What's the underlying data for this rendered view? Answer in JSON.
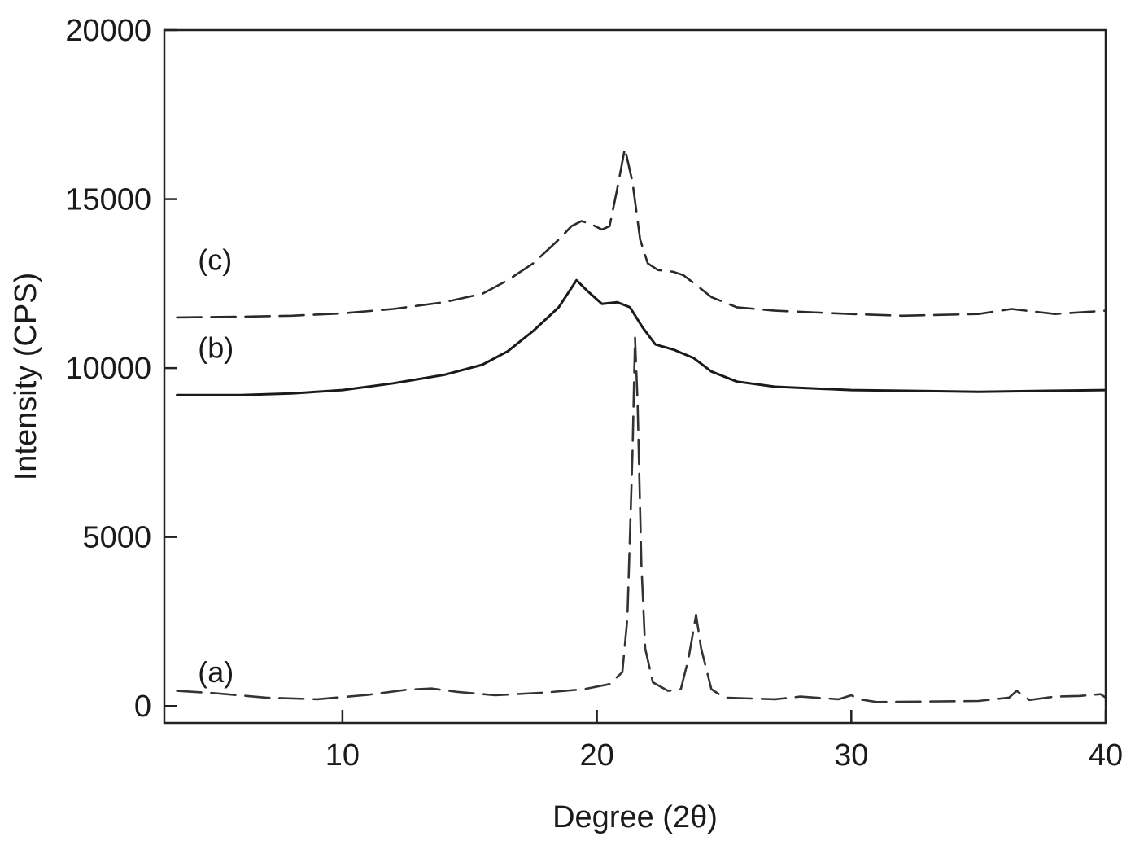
{
  "chart_data": {
    "type": "line",
    "title": "",
    "xlabel": "Degree (2θ)",
    "ylabel": "Intensity (CPS)",
    "xlim": [
      3,
      40
    ],
    "ylim": [
      -500,
      20000
    ],
    "xticks": [
      10,
      20,
      30,
      40
    ],
    "xtick_labels": [
      "10",
      "20",
      "30",
      "40"
    ],
    "yticks": [
      0,
      5000,
      10000,
      15000,
      20000
    ],
    "ytick_labels": [
      "0",
      "5000",
      "10000",
      "15000",
      "20000"
    ],
    "grid": false,
    "legend": "none",
    "series": [
      {
        "name": "(a)",
        "label_at": [
          4,
          700
        ],
        "style": "dashed",
        "color": "#333333",
        "points": [
          [
            3.5,
            450
          ],
          [
            5,
            380
          ],
          [
            7,
            250
          ],
          [
            9,
            200
          ],
          [
            11,
            330
          ],
          [
            12.5,
            480
          ],
          [
            13.5,
            520
          ],
          [
            14.5,
            420
          ],
          [
            16,
            320
          ],
          [
            18,
            400
          ],
          [
            19.5,
            500
          ],
          [
            20.5,
            650
          ],
          [
            21,
            1000
          ],
          [
            21.2,
            2600
          ],
          [
            21.4,
            7500
          ],
          [
            21.5,
            10900
          ],
          [
            21.6,
            9000
          ],
          [
            21.75,
            4200
          ],
          [
            21.9,
            1700
          ],
          [
            22.2,
            700
          ],
          [
            22.8,
            450
          ],
          [
            23.3,
            500
          ],
          [
            23.6,
            1400
          ],
          [
            23.9,
            2700
          ],
          [
            24.1,
            1700
          ],
          [
            24.5,
            500
          ],
          [
            25,
            250
          ],
          [
            27,
            200
          ],
          [
            28,
            280
          ],
          [
            29.5,
            200
          ],
          [
            30,
            320
          ],
          [
            30.3,
            200
          ],
          [
            31,
            120
          ],
          [
            35,
            150
          ],
          [
            36.2,
            250
          ],
          [
            36.5,
            450
          ],
          [
            37,
            180
          ],
          [
            38,
            280
          ],
          [
            39,
            300
          ],
          [
            39.8,
            350
          ],
          [
            40,
            250
          ]
        ]
      },
      {
        "name": "(b)",
        "label_at": [
          4,
          10300
        ],
        "style": "solid",
        "color": "#1a1a1a",
        "points": [
          [
            3.5,
            9200
          ],
          [
            6,
            9200
          ],
          [
            8,
            9250
          ],
          [
            10,
            9350
          ],
          [
            12,
            9550
          ],
          [
            14,
            9800
          ],
          [
            15.5,
            10100
          ],
          [
            16.5,
            10500
          ],
          [
            17.5,
            11100
          ],
          [
            18.5,
            11800
          ],
          [
            19.2,
            12600
          ],
          [
            19.6,
            12300
          ],
          [
            20.2,
            11900
          ],
          [
            20.8,
            11950
          ],
          [
            21.3,
            11800
          ],
          [
            21.8,
            11200
          ],
          [
            22.3,
            10700
          ],
          [
            23,
            10550
          ],
          [
            23.8,
            10300
          ],
          [
            24.5,
            9900
          ],
          [
            25.5,
            9600
          ],
          [
            27,
            9450
          ],
          [
            30,
            9350
          ],
          [
            35,
            9300
          ],
          [
            40,
            9350
          ]
        ]
      },
      {
        "name": "(c)",
        "label_at": [
          4,
          12900
        ],
        "style": "dashed",
        "color": "#2a2a2a",
        "points": [
          [
            3.5,
            11500
          ],
          [
            6,
            11520
          ],
          [
            8,
            11550
          ],
          [
            10,
            11620
          ],
          [
            12,
            11750
          ],
          [
            14,
            11950
          ],
          [
            15.5,
            12200
          ],
          [
            16.5,
            12600
          ],
          [
            17.5,
            13100
          ],
          [
            18.5,
            13800
          ],
          [
            19,
            14200
          ],
          [
            19.4,
            14350
          ],
          [
            19.8,
            14250
          ],
          [
            20.2,
            14100
          ],
          [
            20.5,
            14200
          ],
          [
            20.8,
            15300
          ],
          [
            21.1,
            16500
          ],
          [
            21.4,
            15500
          ],
          [
            21.7,
            13800
          ],
          [
            22,
            13100
          ],
          [
            22.4,
            12900
          ],
          [
            23,
            12850
          ],
          [
            23.4,
            12750
          ],
          [
            24,
            12400
          ],
          [
            24.5,
            12100
          ],
          [
            25.5,
            11800
          ],
          [
            27,
            11700
          ],
          [
            30,
            11600
          ],
          [
            32,
            11550
          ],
          [
            35,
            11600
          ],
          [
            36.3,
            11750
          ],
          [
            38,
            11600
          ],
          [
            40,
            11700
          ]
        ]
      }
    ]
  }
}
